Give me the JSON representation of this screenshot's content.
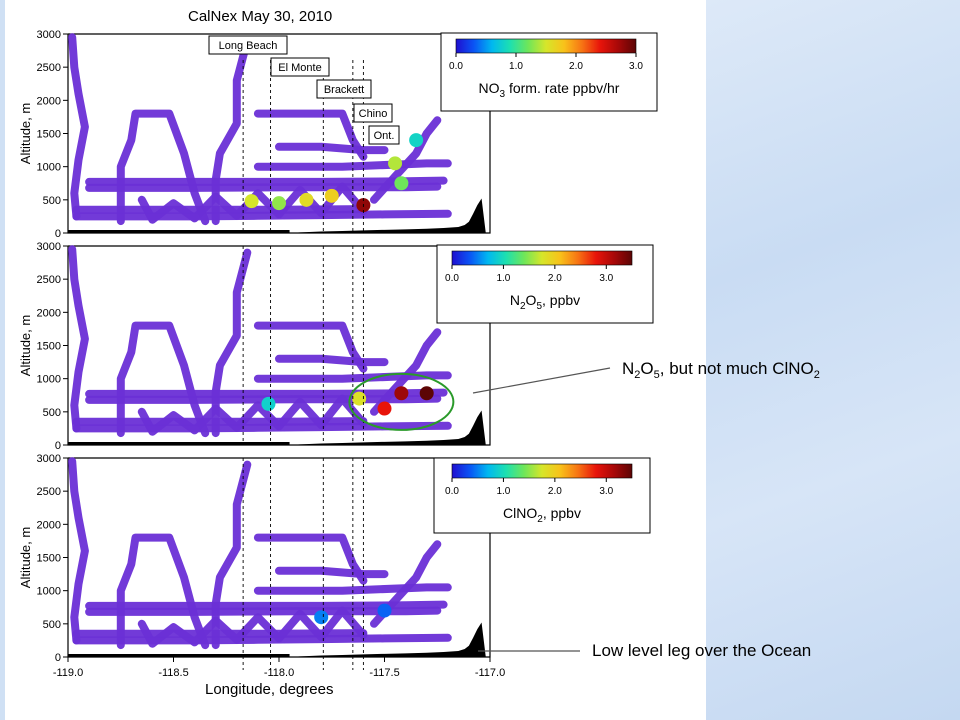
{
  "title": "CalNex   May 30, 2010",
  "xlabel": "Longitude, degrees",
  "x_ticks": [
    "-119.0",
    "-118.5",
    "-118.0",
    "-117.5",
    "-117.0"
  ],
  "y_ticks": [
    "0",
    "500",
    "1000",
    "1500",
    "2000",
    "2500",
    "3000"
  ],
  "ylabel": "Altitude, m",
  "locations": [
    {
      "name": "Long Beach",
      "lon": -118.17
    },
    {
      "name": "El Monte",
      "lon": -118.04
    },
    {
      "name": "Brackett",
      "lon": -117.79
    },
    {
      "name": "Chino",
      "lon": -117.65
    },
    {
      "name": "Ont.",
      "lon": -117.6
    }
  ],
  "colors": {
    "track_base": "#6a2fd6",
    "colorbar": [
      "#1f0fd0",
      "#0a55f5",
      "#00b8f0",
      "#1de0b0",
      "#6ee65a",
      "#d6e62a",
      "#f8c21a",
      "#f77414",
      "#e8140a",
      "#a80808",
      "#5c0505"
    ],
    "ellipse": "#2a9a2a",
    "side_panel": "#cfe0f4"
  },
  "callouts": {
    "n2o5": {
      "main": "N",
      "sub1": "2",
      "mid": "O",
      "sub2": "5",
      "rest": ", but not much ClNO",
      "sub3": "2"
    },
    "ocean": "Low level leg over the Ocean"
  },
  "chart_data": [
    {
      "type": "scatter",
      "panel": "top",
      "quantity_label": {
        "pre": "NO",
        "sub": "3",
        "post": " form. rate ppbv/hr"
      },
      "colorbar_ticks": [
        "0.0",
        "1.0",
        "2.0",
        "3.0"
      ],
      "colorbar_range": [
        0,
        3
      ],
      "xlim": [
        -119.0,
        -117.0
      ],
      "ylim": [
        0,
        3000
      ],
      "hotspots": [
        {
          "lon": -118.13,
          "alt": 480,
          "value": 1.5
        },
        {
          "lon": -118.0,
          "alt": 450,
          "value": 1.3
        },
        {
          "lon": -117.87,
          "alt": 500,
          "value": 1.6
        },
        {
          "lon": -117.75,
          "alt": 560,
          "value": 1.7
        },
        {
          "lon": -117.6,
          "alt": 420,
          "value": 2.8
        },
        {
          "lon": -117.45,
          "alt": 1050,
          "value": 1.4
        },
        {
          "lon": -117.42,
          "alt": 750,
          "value": 1.2
        },
        {
          "lon": -117.35,
          "alt": 1400,
          "value": 0.8
        }
      ]
    },
    {
      "type": "scatter",
      "panel": "middle",
      "quantity_label": {
        "pre": "N",
        "sub": "2",
        "mid": "O",
        "sub2": "5",
        "post": ", ppbv"
      },
      "colorbar_ticks": [
        "0.0",
        "1.0",
        "2.0",
        "3.0"
      ],
      "colorbar_range": [
        0,
        3.5
      ],
      "xlim": [
        -119.0,
        -117.0
      ],
      "ylim": [
        0,
        3000
      ],
      "hotspots": [
        {
          "lon": -117.5,
          "alt": 550,
          "value": 2.8
        },
        {
          "lon": -117.42,
          "alt": 780,
          "value": 3.2
        },
        {
          "lon": -117.3,
          "alt": 780,
          "value": 3.5
        },
        {
          "lon": -117.62,
          "alt": 700,
          "value": 1.8
        },
        {
          "lon": -118.05,
          "alt": 620,
          "value": 0.9
        }
      ]
    },
    {
      "type": "scatter",
      "panel": "bottom",
      "quantity_label": {
        "pre": "ClNO",
        "sub": "2",
        "post": ", ppbv"
      },
      "colorbar_ticks": [
        "0.0",
        "1.0",
        "2.0",
        "3.0"
      ],
      "colorbar_range": [
        0,
        3.5
      ],
      "xlim": [
        -119.0,
        -117.0
      ],
      "ylim": [
        0,
        3000
      ],
      "hotspots": [
        {
          "lon": -117.8,
          "alt": 600,
          "value": 0.5
        },
        {
          "lon": -117.5,
          "alt": 700,
          "value": 0.4
        }
      ]
    }
  ]
}
